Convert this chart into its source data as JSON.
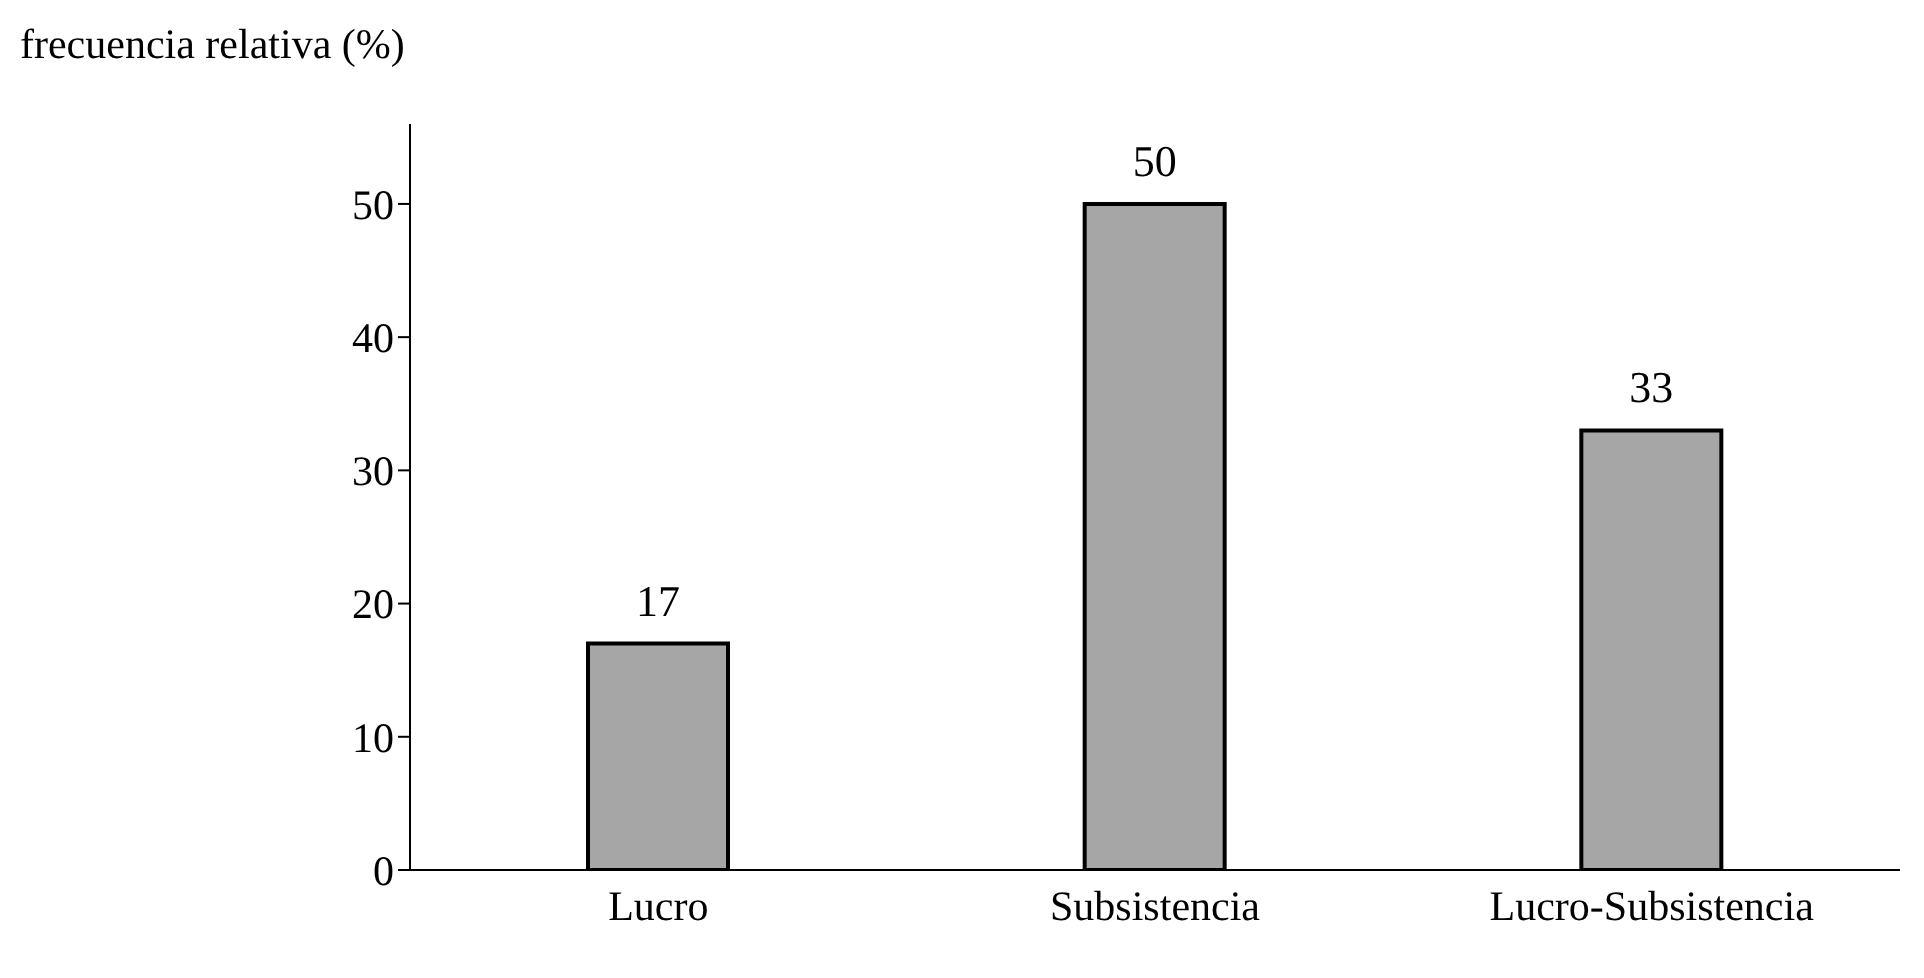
{
  "chart_data": {
    "type": "bar",
    "ylabel": "frecuencia relativa (%)",
    "categories": [
      "Lucro",
      "Subsistencia",
      "Lucro-Subsistencia"
    ],
    "values": [
      17,
      50,
      33
    ],
    "color": "#a6a6a6",
    "ylim": [
      0,
      56
    ],
    "yticks": [
      0,
      10,
      20,
      30,
      40,
      50
    ],
    "grid": false,
    "data_labels": true
  }
}
